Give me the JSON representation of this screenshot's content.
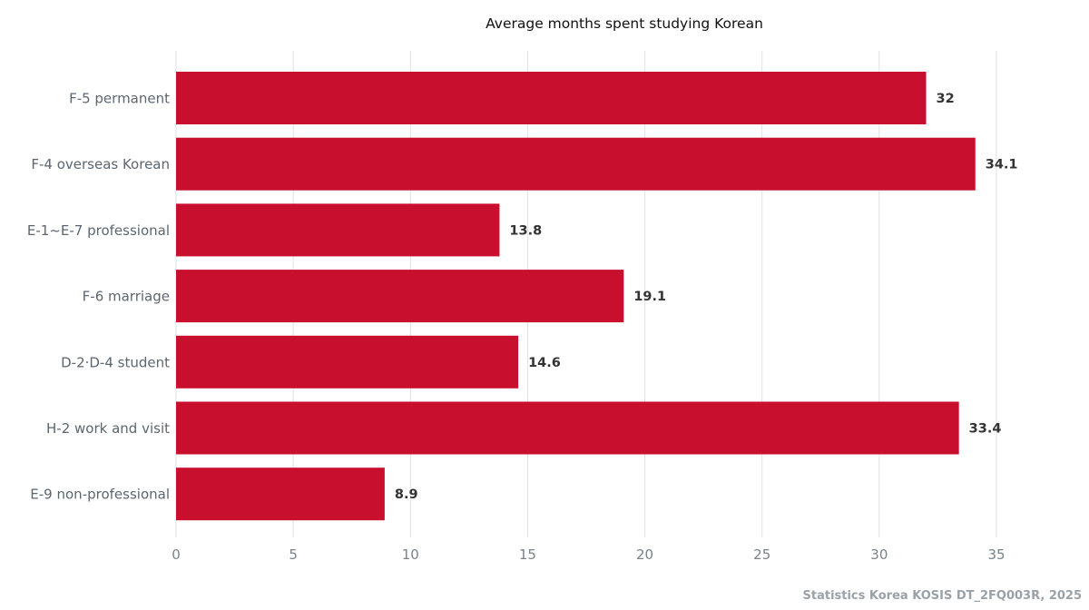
{
  "chart_data": {
    "type": "bar",
    "orientation": "horizontal",
    "title": "Average months spent studying Korean",
    "categories": [
      "F-5 permanent",
      "F-4 overseas Korean",
      "E-1~E-7 professional",
      "F-6 marriage",
      "D-2·D-4 student",
      "H-2 work and visit",
      "E-9 non-professional"
    ],
    "values": [
      32,
      34.1,
      13.8,
      19.1,
      14.6,
      33.4,
      8.9
    ],
    "value_labels": [
      "32",
      "34.1",
      "13.8",
      "19.1",
      "14.6",
      "33.4",
      "8.9"
    ],
    "xlim": [
      0,
      35
    ],
    "x_ticks": [
      0,
      5,
      10,
      15,
      20,
      25,
      30,
      35
    ],
    "grid": true,
    "bar_color": "#c8102e",
    "source": "Statistics Korea KOSIS DT_2FQ003R, 2025"
  }
}
